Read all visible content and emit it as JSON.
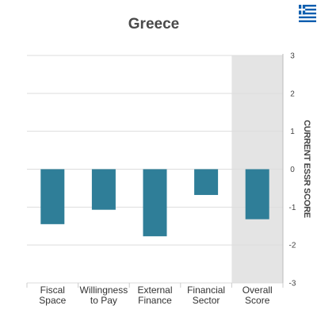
{
  "chart_data": {
    "type": "bar",
    "title": "Greece",
    "categories": [
      "Fiscal Space",
      "Willingness to Pay",
      "External Finance",
      "Financial Sector",
      "Overall Score"
    ],
    "category_lines": [
      [
        "Fiscal",
        "Space"
      ],
      [
        "Willingness",
        "to Pay"
      ],
      [
        "External",
        "Finance"
      ],
      [
        "Financial",
        "Sector"
      ],
      [
        "Overall",
        "Score"
      ]
    ],
    "values": [
      -1.45,
      -1.07,
      -1.77,
      -0.68,
      -1.32
    ],
    "ylabel": "CURRENT ESSR SCORE",
    "ylim": [
      -3,
      3
    ],
    "yticks": [
      3,
      2,
      1,
      0,
      -1,
      -2,
      -3
    ],
    "highlighted_category": "Overall Score",
    "grid": true,
    "legend": "none",
    "colors": {
      "bar": "#2f7e98",
      "highlight_band": "#e4e4e4",
      "grid": "#dddddd"
    }
  },
  "icons": {
    "flag": "greece-flag-icon"
  }
}
